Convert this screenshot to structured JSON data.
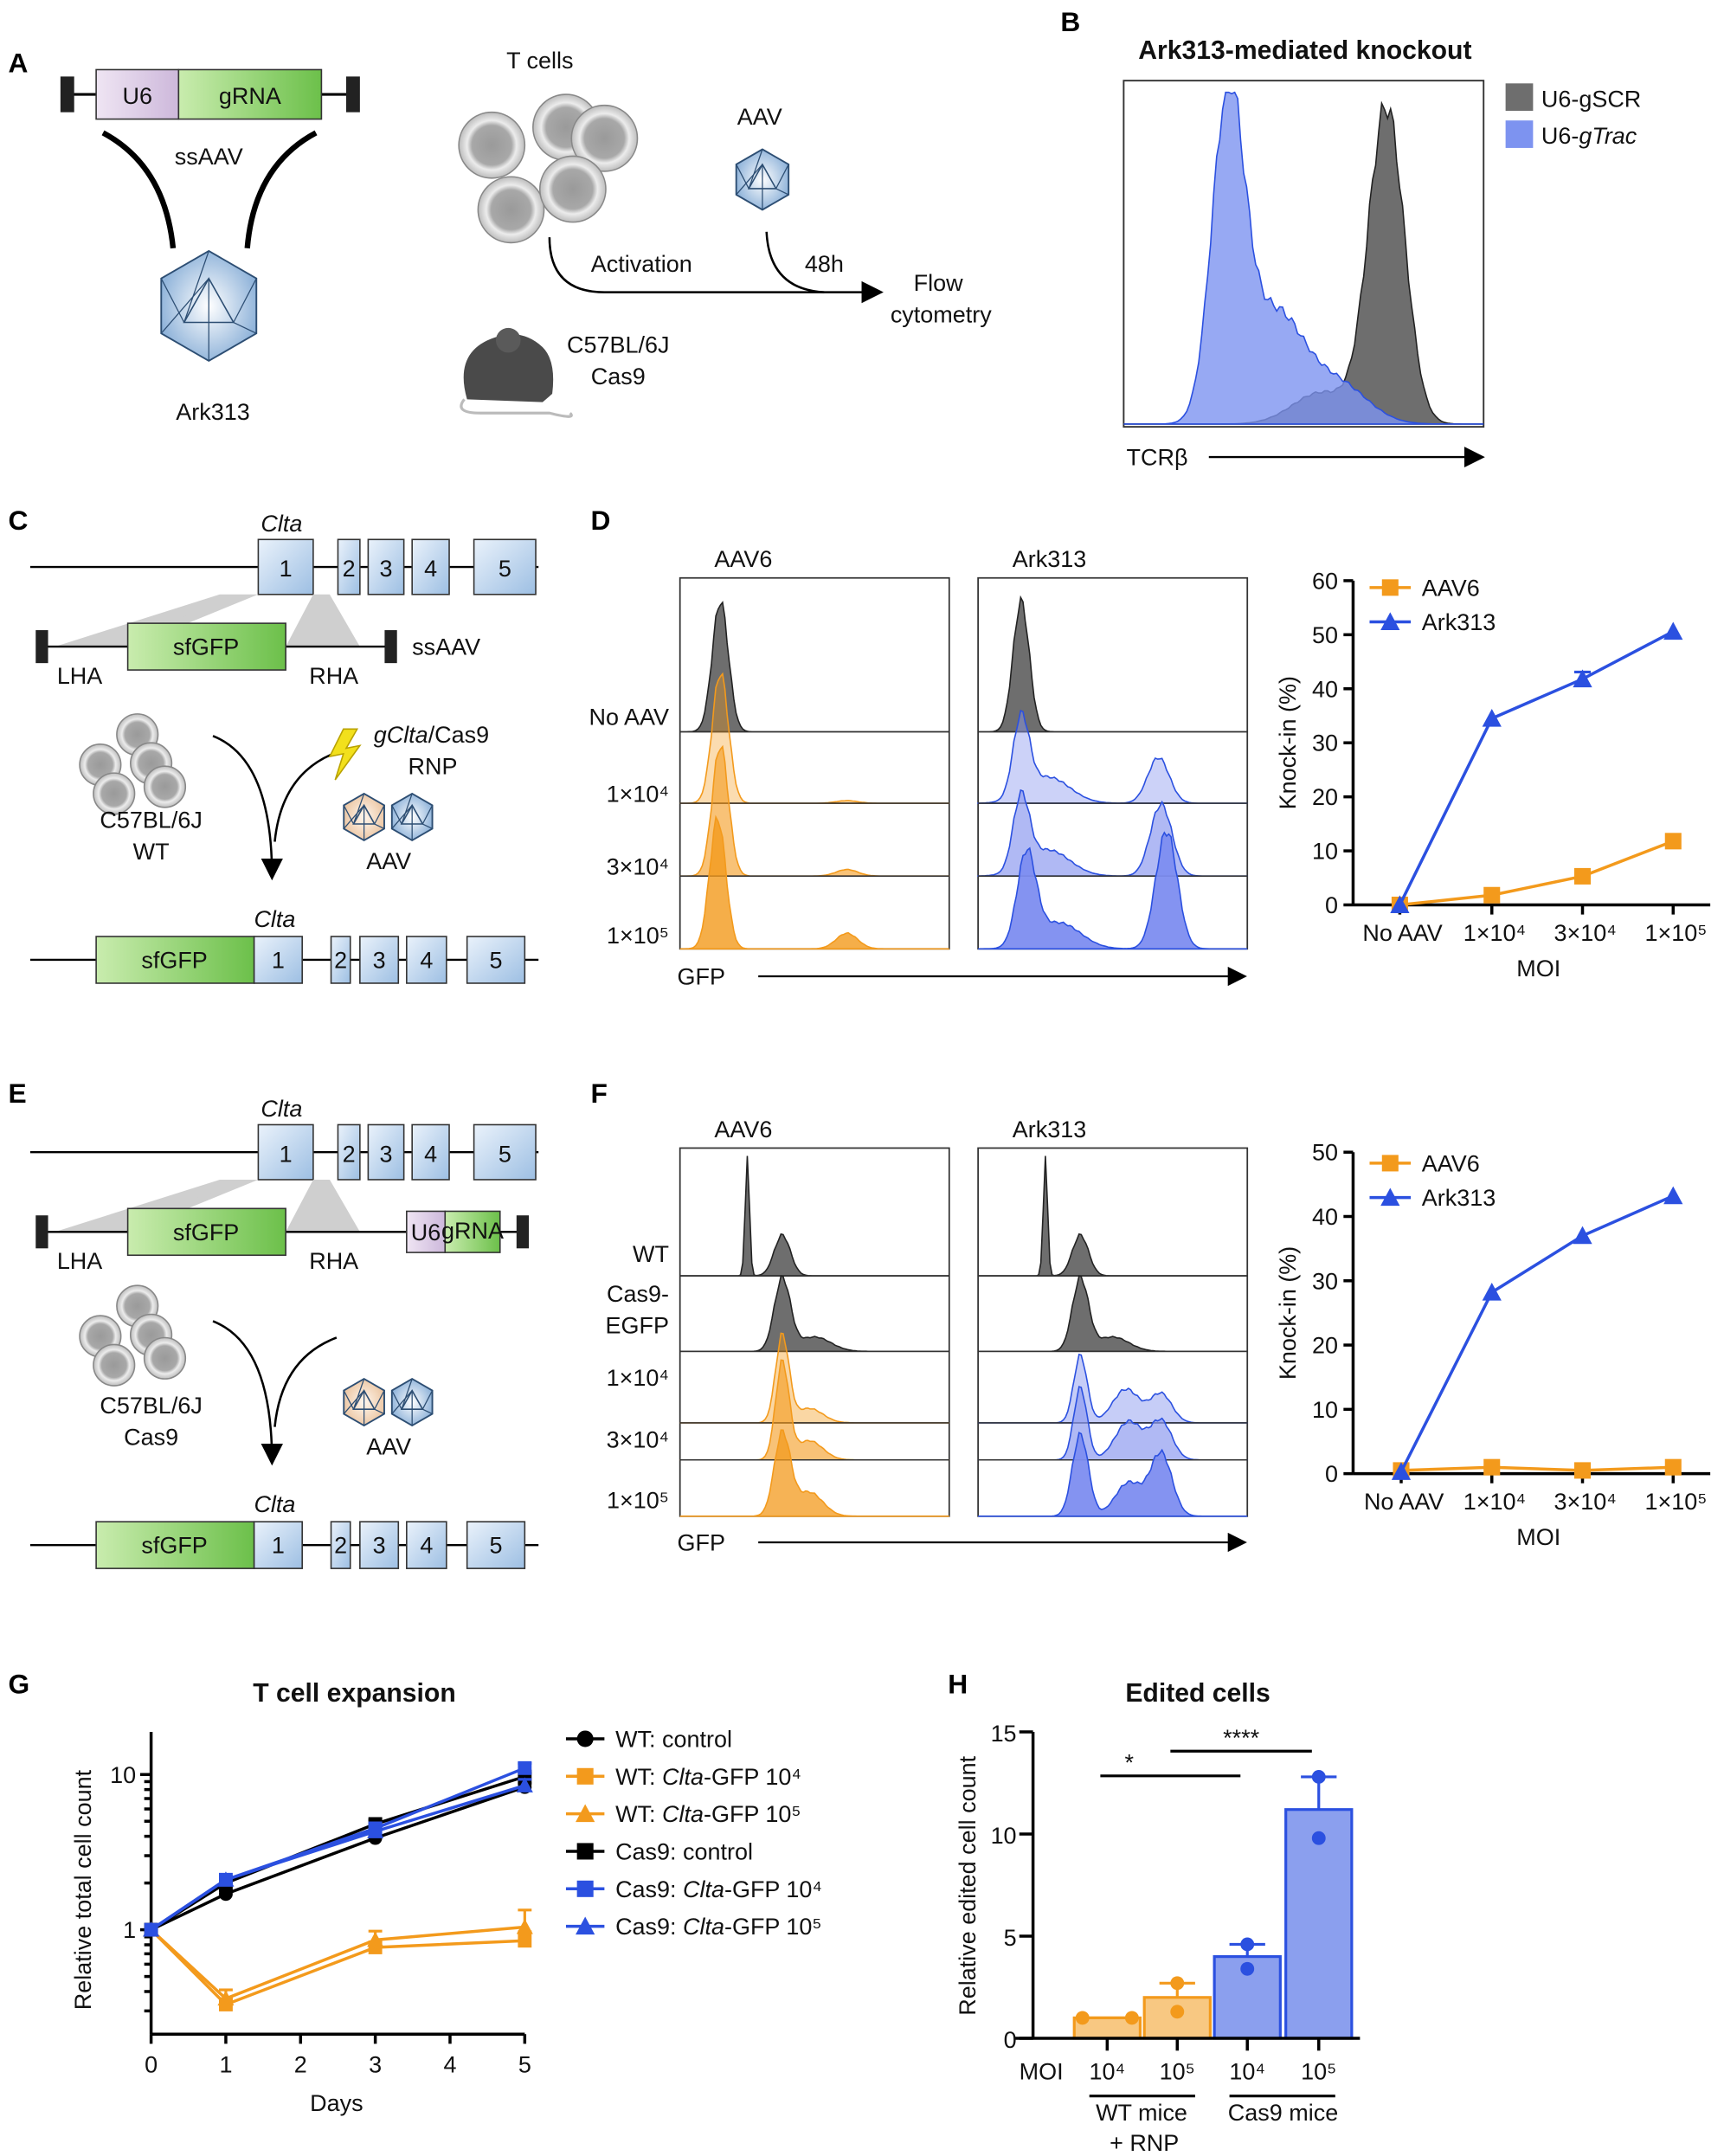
{
  "panel_labels": {
    "a": "A",
    "b": "B",
    "c": "C",
    "d": "D",
    "e": "E",
    "f": "F",
    "g": "G",
    "h": "H"
  },
  "panel_a": {
    "u6": "U6",
    "grna": "gRNA",
    "ssaav": "ssAAV",
    "ark313": "Ark313",
    "t_cells": "T cells",
    "aav": "AAV",
    "activation": "Activation",
    "time": "48h",
    "flow_line1": "Flow",
    "flow_line2": "cytometry",
    "mouse_line1": "C57BL/6J",
    "mouse_line2": "Cas9"
  },
  "panel_b": {
    "title": "Ark313-mediated knockout",
    "legend": [
      {
        "text": "U6-gSCR",
        "italic": ""
      },
      {
        "text": "U6-",
        "italic": "gTrac"
      }
    ],
    "xlabel": "TCRβ",
    "colors": {
      "scr": "#6e6e6e",
      "trac": "#7d93f0"
    }
  },
  "panel_c": {
    "gene": "Clta",
    "exons": [
      "1",
      "2",
      "3",
      "4",
      "5"
    ],
    "donor": "sfGFP",
    "lha": "LHA",
    "rha": "RHA",
    "ssaav": "ssAAV",
    "rnp_italic": "gClta",
    "rnp_rest": "/Cas9",
    "rnp_line2": "RNP",
    "cells_line1": "C57BL/6J",
    "cells_line2": "WT",
    "aav": "AAV"
  },
  "panel_d": {
    "col_aav6": "AAV6",
    "col_ark313": "Ark313",
    "rows": [
      "No AAV",
      "1×10⁴",
      "3×10⁴",
      "1×10⁵"
    ],
    "xlabel": "GFP"
  },
  "panel_e": {
    "gene": "Clta",
    "exons": [
      "1",
      "2",
      "3",
      "4",
      "5"
    ],
    "donor": "sfGFP",
    "lha": "LHA",
    "rha": "RHA",
    "u6": "U6",
    "grna": "gRNA",
    "cells_line1": "C57BL/6J",
    "cells_line2": "Cas9",
    "aav": "AAV"
  },
  "panel_f": {
    "col_aav6": "AAV6",
    "col_ark313": "Ark313",
    "rows": [
      "WT",
      "Cas9-",
      "EGFP",
      "1×10⁴",
      "3×10⁴",
      "1×10⁵"
    ],
    "xlabel": "GFP"
  },
  "chart_data": [
    {
      "id": "d_line",
      "type": "line",
      "categories": [
        "No AAV",
        "1×10⁴",
        "3×10⁴",
        "1×10⁵"
      ],
      "xlabel": "MOI",
      "ylabel": "Knock-in (%)",
      "ylim": [
        0,
        60
      ],
      "yticks": [
        "0",
        "10",
        "20",
        "30",
        "40",
        "50",
        "60"
      ],
      "legend": "top-left",
      "series": [
        {
          "name": "AAV6",
          "color": "#f39a1c",
          "marker": "square",
          "values": [
            0,
            1.8,
            5.3,
            11.8
          ],
          "error": [
            0,
            0.3,
            0.4,
            0.5
          ]
        },
        {
          "name": "Ark313",
          "color": "#2b50e0",
          "marker": "triangle",
          "values": [
            0,
            34.5,
            41.8,
            50.6
          ],
          "error": [
            0,
            0.4,
            1.3,
            0.3
          ]
        }
      ]
    },
    {
      "id": "f_line",
      "type": "line",
      "categories": [
        "No AAV",
        "1×10⁴",
        "3×10⁴",
        "1×10⁵"
      ],
      "xlabel": "MOI",
      "ylabel": "Knock-in (%)",
      "ylim": [
        0,
        50
      ],
      "yticks": [
        "0",
        "10",
        "20",
        "30",
        "40",
        "50"
      ],
      "legend": "top-left",
      "series": [
        {
          "name": "AAV6",
          "color": "#f39a1c",
          "marker": "square",
          "values": [
            0.5,
            1.0,
            0.5,
            1.0
          ]
        },
        {
          "name": "Ark313",
          "color": "#2b50e0",
          "marker": "triangle",
          "values": [
            0.3,
            28.2,
            37.0,
            43.2
          ]
        }
      ]
    },
    {
      "id": "g_line",
      "type": "line",
      "title": "T cell expansion",
      "x": [
        0,
        1,
        3,
        5
      ],
      "xlabel": "Days",
      "xticks": [
        "0",
        "1",
        "2",
        "3",
        "4",
        "5"
      ],
      "ylabel": "Relative total cell count",
      "yscale": "log",
      "ylim": [
        0.2,
        20
      ],
      "yticks": [
        "1",
        "10"
      ],
      "legend": "right",
      "series": [
        {
          "name_pre": "WT: ",
          "name_it": "",
          "name_post": "control",
          "color": "#000000",
          "marker": "circle",
          "values": [
            1,
            1.7,
            3.9,
            8.3
          ],
          "error": [
            0,
            0.08,
            0.2,
            0.4
          ]
        },
        {
          "name_pre": "WT: ",
          "name_it": "Clta",
          "name_post": "-GFP 10⁴",
          "color": "#f39a1c",
          "marker": "square",
          "values": [
            1,
            0.33,
            0.77,
            0.85
          ],
          "error": [
            0,
            0.03,
            0.06,
            0.12
          ]
        },
        {
          "name_pre": "WT: ",
          "name_it": "Clta",
          "name_post": "-GFP 10⁵",
          "color": "#f39a1c",
          "marker": "triangle",
          "values": [
            1,
            0.36,
            0.86,
            1.04
          ],
          "error": [
            0,
            0.05,
            0.12,
            0.3
          ]
        },
        {
          "name_pre": "Cas9: ",
          "name_it": "",
          "name_post": "control",
          "color": "#000000",
          "marker": "square",
          "values": [
            1,
            2.0,
            4.8,
            9.7
          ],
          "error": [
            0,
            0.1,
            0.3,
            0.5
          ]
        },
        {
          "name_pre": "Cas9: ",
          "name_it": "Clta",
          "name_post": "-GFP 10⁴",
          "color": "#2b50e0",
          "marker": "square",
          "values": [
            1,
            2.1,
            4.5,
            11.0
          ],
          "error": [
            0,
            0.1,
            0.3,
            0.8
          ]
        },
        {
          "name_pre": "Cas9: ",
          "name_it": "Clta",
          "name_post": "-GFP 10⁵",
          "color": "#2b50e0",
          "marker": "triangle",
          "values": [
            1,
            2.1,
            4.3,
            8.5
          ],
          "error": [
            0,
            0.1,
            0.3,
            0.8
          ]
        }
      ]
    },
    {
      "id": "h_bar",
      "type": "bar",
      "title": "Edited cells",
      "categories": [
        "10⁴",
        "10⁵",
        "10⁴",
        "10⁵"
      ],
      "xlabel": "MOI",
      "groups": [
        {
          "label_line1": "WT mice",
          "label_line2": "+ RNP"
        },
        {
          "label_line1": "Cas9 mice",
          "label_line2": ""
        }
      ],
      "ylabel": "Relative edited cell count",
      "ylim": [
        0,
        15
      ],
      "yticks": [
        "0",
        "5",
        "10",
        "15"
      ],
      "values": [
        1.0,
        2.0,
        4.0,
        11.2
      ],
      "points": [
        [
          1.0,
          1.0
        ],
        [
          1.3,
          2.7
        ],
        [
          3.4,
          4.6
        ],
        [
          9.8,
          12.8
        ]
      ],
      "error_upper": [
        1.0,
        2.7,
        4.6,
        12.8
      ],
      "colors": [
        "#f39a1c",
        "#f39a1c",
        "#2b50e0",
        "#2b50e0"
      ],
      "significance": [
        {
          "between": [
            0,
            2
          ],
          "label": "*"
        },
        {
          "between": [
            1,
            3
          ],
          "label": "****"
        }
      ]
    }
  ]
}
